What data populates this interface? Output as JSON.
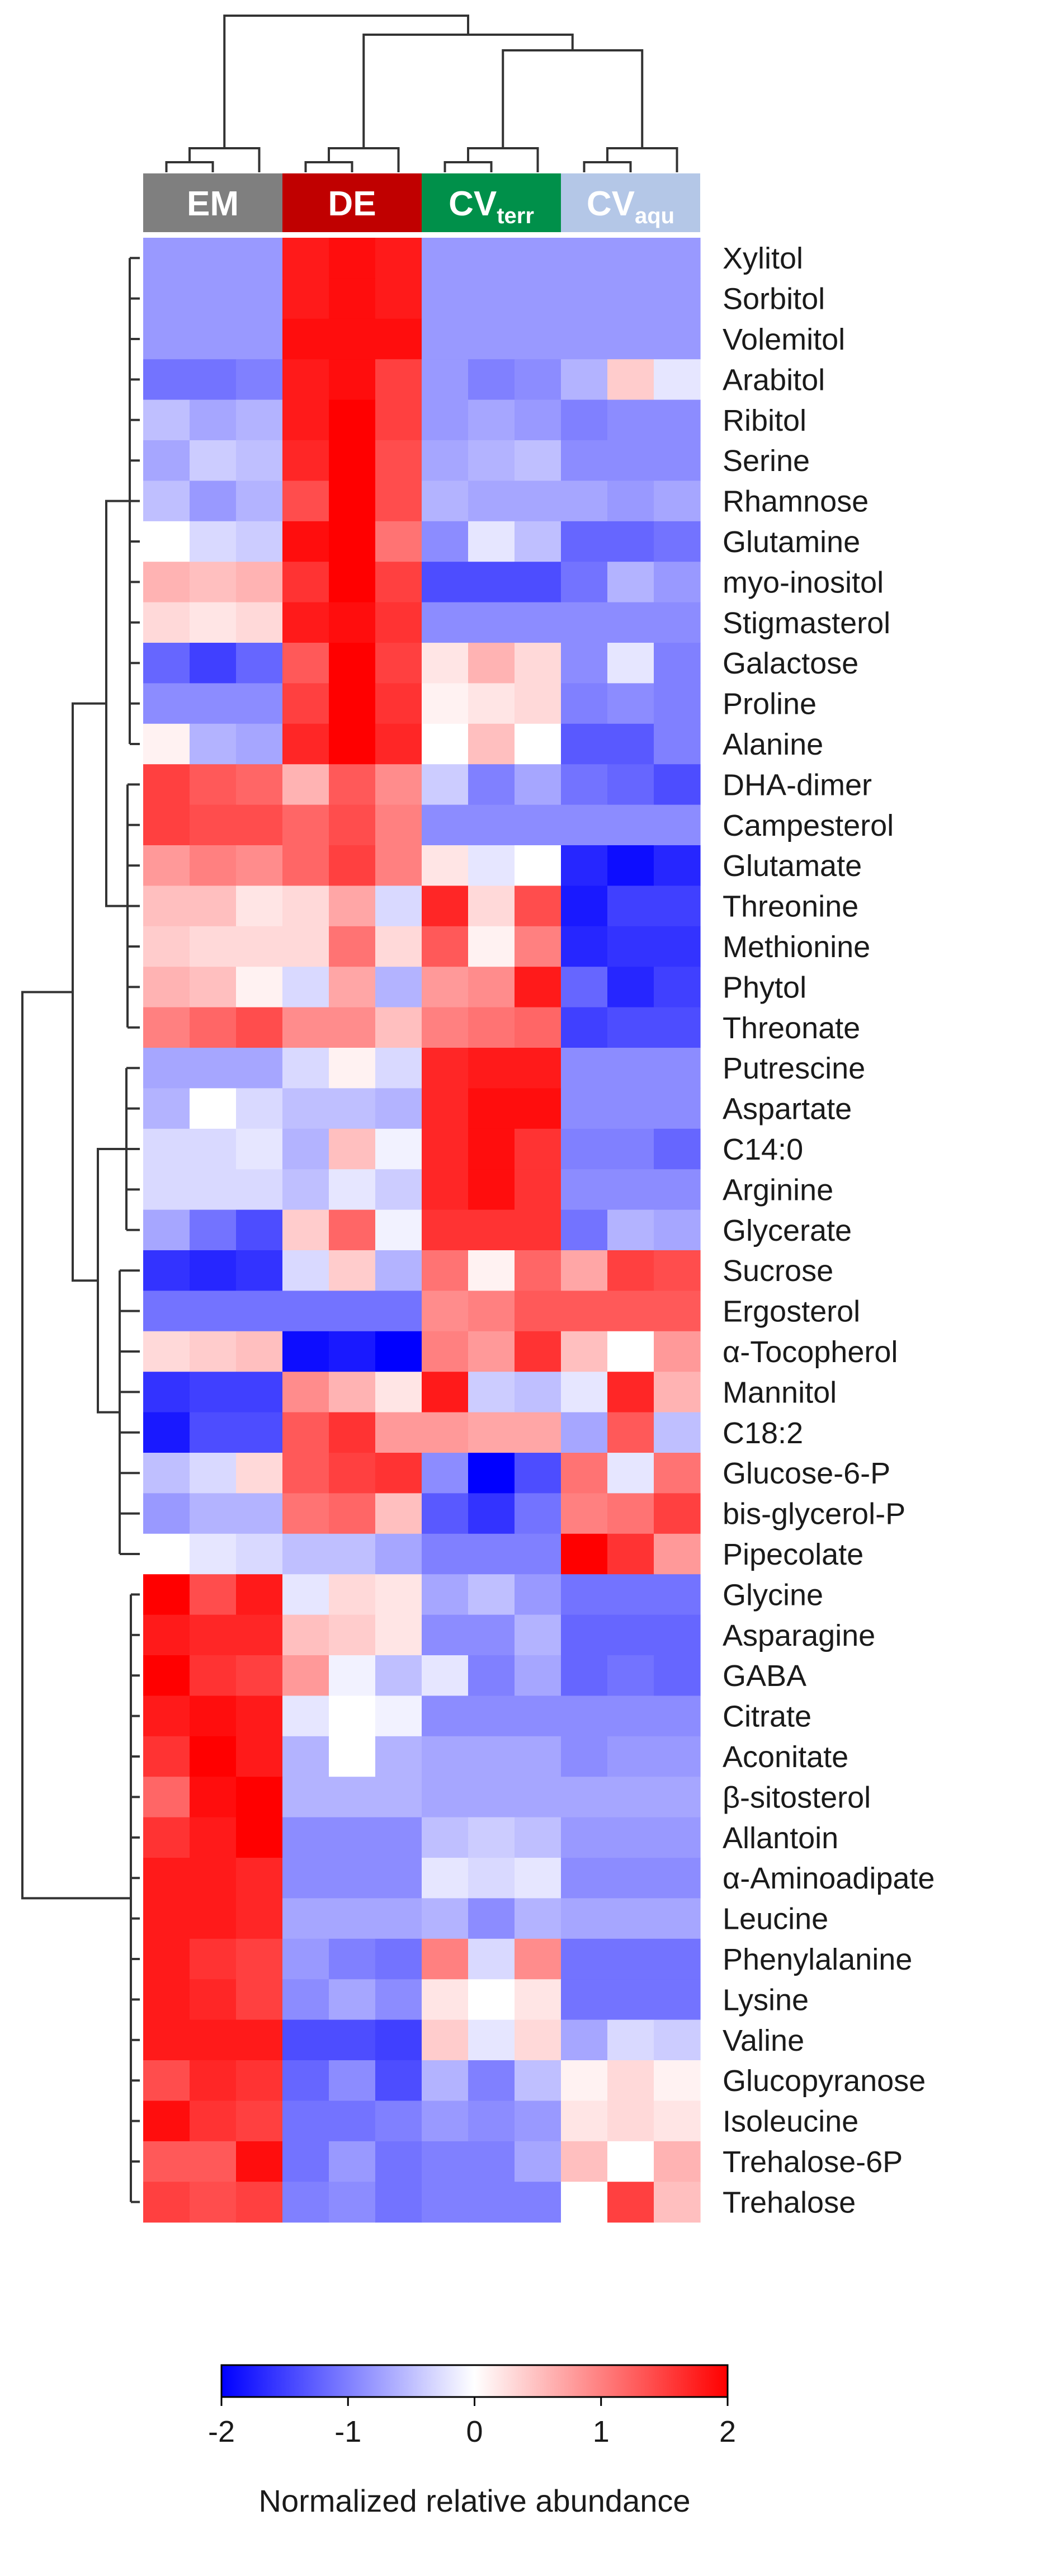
{
  "chart_data": {
    "type": "heatmap",
    "title": "",
    "groups": [
      {
        "label": "EM",
        "sub": "",
        "color": "#7f7f7f",
        "columns": 3
      },
      {
        "label": "DE",
        "sub": "",
        "color": "#c00000",
        "columns": 3
      },
      {
        "label": "CV",
        "sub": "terr",
        "color": "#00904a",
        "columns": 3
      },
      {
        "label": "CV",
        "sub": "aqu",
        "color": "#b4c7e7",
        "columns": 3
      }
    ],
    "rows": [
      "Xylitol",
      "Sorbitol",
      "Volemitol",
      "Arabitol",
      "Ribitol",
      "Serine",
      "Rhamnose",
      "Glutamine",
      "myo-inositol",
      "Stigmasterol",
      "Galactose",
      "Proline",
      "Alanine",
      "DHA-dimer",
      "Campesterol",
      "Glutamate",
      "Threonine",
      "Methionine",
      "Phytol",
      "Threonate",
      "Putrescine",
      "Aspartate",
      "C14:0",
      "Arginine",
      "Glycerate",
      "Sucrose",
      "Ergosterol",
      "α-Tocopherol",
      "Mannitol",
      "C18:2",
      "Glucose-6-P",
      "bis-glycerol-P",
      "Pipecolate",
      "Glycine",
      "Asparagine",
      "GABA",
      "Citrate",
      "Aconitate",
      "β-sitosterol",
      "Allantoin",
      "α-Aminoadipate",
      "Leucine",
      "Phenylalanine",
      "Lysine",
      "Valine",
      "Glucopyranose",
      "Isoleucine",
      "Trehalose-6P",
      "Trehalose"
    ],
    "values": [
      [
        -0.8,
        -0.8,
        -0.8,
        1.8,
        1.9,
        1.8,
        -0.8,
        -0.8,
        -0.8,
        -0.8,
        -0.8,
        -0.8
      ],
      [
        -0.8,
        -0.8,
        -0.8,
        1.8,
        1.9,
        1.8,
        -0.8,
        -0.8,
        -0.8,
        -0.8,
        -0.8,
        -0.8
      ],
      [
        -0.8,
        -0.8,
        -0.8,
        1.9,
        1.9,
        1.9,
        -0.8,
        -0.8,
        -0.8,
        -0.8,
        -0.8,
        -0.8
      ],
      [
        -1.1,
        -1.1,
        -1.0,
        1.8,
        1.9,
        1.5,
        -0.8,
        -1.0,
        -0.9,
        -0.6,
        0.4,
        -0.2
      ],
      [
        -0.5,
        -0.7,
        -0.6,
        1.8,
        2.0,
        1.5,
        -0.8,
        -0.7,
        -0.8,
        -1.0,
        -0.9,
        -0.9
      ],
      [
        -0.7,
        -0.4,
        -0.5,
        1.7,
        2.0,
        1.4,
        -0.7,
        -0.6,
        -0.5,
        -0.9,
        -0.9,
        -0.9
      ],
      [
        -0.5,
        -0.8,
        -0.6,
        1.4,
        2.0,
        1.4,
        -0.6,
        -0.7,
        -0.7,
        -0.7,
        -0.8,
        -0.7
      ],
      [
        0.0,
        -0.3,
        -0.4,
        1.9,
        2.0,
        1.1,
        -0.9,
        -0.2,
        -0.5,
        -1.2,
        -1.2,
        -1.1
      ],
      [
        0.6,
        0.5,
        0.6,
        1.6,
        2.0,
        1.5,
        -1.4,
        -1.4,
        -1.4,
        -1.1,
        -0.6,
        -0.8
      ],
      [
        0.3,
        0.2,
        0.3,
        1.8,
        1.9,
        1.6,
        -0.9,
        -0.9,
        -0.9,
        -0.9,
        -0.9,
        -0.9
      ],
      [
        -1.2,
        -1.5,
        -1.2,
        1.3,
        2.0,
        1.5,
        0.2,
        0.6,
        0.3,
        -0.9,
        -0.2,
        -1.0
      ],
      [
        -0.9,
        -0.9,
        -0.9,
        1.5,
        2.0,
        1.6,
        0.1,
        0.2,
        0.3,
        -1.0,
        -0.9,
        -1.0
      ],
      [
        0.1,
        -0.6,
        -0.7,
        1.7,
        2.0,
        1.7,
        0.0,
        0.5,
        0.0,
        -1.3,
        -1.3,
        -1.0
      ],
      [
        1.5,
        1.3,
        1.2,
        0.6,
        1.3,
        0.9,
        -0.4,
        -1.0,
        -0.7,
        -1.1,
        -1.2,
        -1.4
      ],
      [
        1.5,
        1.4,
        1.4,
        1.2,
        1.4,
        1.0,
        -0.9,
        -0.9,
        -0.9,
        -0.9,
        -0.9,
        -0.9
      ],
      [
        0.8,
        1.0,
        0.9,
        1.2,
        1.5,
        1.0,
        0.2,
        -0.2,
        0.0,
        -1.7,
        -1.9,
        -1.7
      ],
      [
        0.5,
        0.5,
        0.2,
        0.3,
        0.7,
        -0.3,
        1.7,
        0.3,
        1.4,
        -1.8,
        -1.5,
        -1.5
      ],
      [
        0.4,
        0.3,
        0.3,
        0.3,
        1.1,
        0.3,
        1.3,
        0.1,
        1.0,
        -1.7,
        -1.6,
        -1.6
      ],
      [
        0.6,
        0.5,
        0.1,
        -0.3,
        0.7,
        -0.6,
        0.8,
        0.9,
        1.8,
        -1.2,
        -1.7,
        -1.5
      ],
      [
        1.0,
        1.2,
        1.4,
        0.9,
        0.9,
        0.5,
        1.0,
        1.1,
        1.2,
        -1.5,
        -1.4,
        -1.4
      ],
      [
        -0.7,
        -0.7,
        -0.7,
        -0.3,
        0.1,
        -0.3,
        1.7,
        1.8,
        1.8,
        -0.9,
        -0.9,
        -0.9
      ],
      [
        -0.6,
        0.0,
        -0.3,
        -0.5,
        -0.5,
        -0.6,
        1.7,
        1.9,
        1.9,
        -0.9,
        -0.9,
        -0.9
      ],
      [
        -0.3,
        -0.3,
        -0.2,
        -0.6,
        0.5,
        -0.1,
        1.7,
        1.9,
        1.6,
        -1.0,
        -1.0,
        -1.2
      ],
      [
        -0.3,
        -0.3,
        -0.3,
        -0.5,
        -0.2,
        -0.4,
        1.7,
        1.9,
        1.6,
        -0.9,
        -0.9,
        -0.9
      ],
      [
        -0.7,
        -1.1,
        -1.4,
        0.4,
        1.2,
        -0.1,
        1.6,
        1.6,
        1.6,
        -1.1,
        -0.6,
        -0.7
      ],
      [
        -1.6,
        -1.7,
        -1.6,
        -0.3,
        0.4,
        -0.6,
        1.1,
        0.1,
        1.2,
        0.7,
        1.5,
        1.4
      ],
      [
        -1.1,
        -1.1,
        -1.1,
        -1.1,
        -1.1,
        -1.1,
        0.9,
        1.0,
        1.3,
        1.3,
        1.3,
        1.3
      ],
      [
        0.3,
        0.4,
        0.5,
        -1.9,
        -1.8,
        -2.0,
        1.0,
        0.8,
        1.6,
        0.5,
        0.0,
        0.8
      ],
      [
        -1.6,
        -1.5,
        -1.5,
        0.9,
        0.6,
        0.2,
        1.8,
        -0.4,
        -0.5,
        -0.2,
        1.7,
        0.6
      ],
      [
        -1.8,
        -1.4,
        -1.4,
        1.3,
        1.6,
        0.8,
        0.8,
        0.7,
        0.7,
        -0.7,
        1.3,
        -0.5
      ],
      [
        -0.5,
        -0.3,
        0.3,
        1.3,
        1.5,
        1.6,
        -0.9,
        -2.0,
        -1.4,
        1.1,
        -0.2,
        1.1
      ],
      [
        -0.8,
        -0.6,
        -0.6,
        1.1,
        1.2,
        0.5,
        -1.3,
        -1.6,
        -1.1,
        1.0,
        1.1,
        1.5
      ],
      [
        0.0,
        -0.2,
        -0.3,
        -0.5,
        -0.5,
        -0.7,
        -1.0,
        -1.0,
        -1.0,
        2.0,
        1.6,
        0.8
      ],
      [
        2.0,
        1.4,
        1.8,
        -0.2,
        0.3,
        0.2,
        -0.7,
        -0.5,
        -0.8,
        -1.1,
        -1.1,
        -1.1
      ],
      [
        1.8,
        1.7,
        1.7,
        0.5,
        0.4,
        0.2,
        -0.9,
        -0.9,
        -0.6,
        -1.2,
        -1.2,
        -1.2
      ],
      [
        2.0,
        1.6,
        1.5,
        0.8,
        -0.1,
        -0.5,
        -0.2,
        -1.0,
        -0.7,
        -1.2,
        -1.1,
        -1.2
      ],
      [
        1.8,
        1.9,
        1.8,
        -0.2,
        0.0,
        -0.1,
        -0.9,
        -0.9,
        -0.9,
        -0.9,
        -0.9,
        -0.9
      ],
      [
        1.6,
        2.0,
        1.8,
        -0.6,
        0.0,
        -0.6,
        -0.7,
        -0.7,
        -0.7,
        -0.9,
        -0.8,
        -0.8
      ],
      [
        1.2,
        1.9,
        2.0,
        -0.6,
        -0.6,
        -0.6,
        -0.7,
        -0.7,
        -0.7,
        -0.7,
        -0.7,
        -0.7
      ],
      [
        1.6,
        1.8,
        2.0,
        -0.9,
        -0.9,
        -0.9,
        -0.5,
        -0.4,
        -0.5,
        -0.8,
        -0.8,
        -0.8
      ],
      [
        1.8,
        1.8,
        1.7,
        -0.9,
        -0.9,
        -0.9,
        -0.2,
        -0.3,
        -0.2,
        -0.9,
        -0.9,
        -0.9
      ],
      [
        1.8,
        1.8,
        1.7,
        -0.7,
        -0.7,
        -0.7,
        -0.6,
        -0.9,
        -0.6,
        -0.7,
        -0.7,
        -0.7
      ],
      [
        1.8,
        1.6,
        1.5,
        -0.8,
        -1.0,
        -1.1,
        1.0,
        -0.3,
        0.9,
        -1.1,
        -1.1,
        -1.1
      ],
      [
        1.8,
        1.7,
        1.5,
        -0.9,
        -0.7,
        -0.9,
        0.2,
        0.0,
        0.2,
        -1.1,
        -1.1,
        -1.1
      ],
      [
        1.8,
        1.8,
        1.8,
        -1.4,
        -1.4,
        -1.5,
        0.4,
        -0.2,
        0.3,
        -0.7,
        -0.3,
        -0.4
      ],
      [
        1.4,
        1.7,
        1.6,
        -1.2,
        -0.9,
        -1.4,
        -0.6,
        -1.0,
        -0.5,
        0.1,
        0.3,
        0.1
      ],
      [
        1.9,
        1.6,
        1.5,
        -1.1,
        -1.1,
        -1.0,
        -0.8,
        -0.9,
        -0.8,
        0.2,
        0.3,
        0.2
      ],
      [
        1.3,
        1.3,
        1.9,
        -1.1,
        -0.8,
        -1.1,
        -1.0,
        -1.0,
        -0.7,
        0.5,
        0.0,
        0.6
      ],
      [
        1.5,
        1.4,
        1.5,
        -1.0,
        -0.9,
        -1.1,
        -1.0,
        -1.0,
        -1.0,
        0.0,
        1.5,
        0.5
      ]
    ],
    "colorbar": {
      "min": -2,
      "max": 2,
      "ticks": [
        "-2",
        "-1",
        "0",
        "1",
        "2"
      ],
      "title": "Normalized relative abundance",
      "colors": {
        "low": "#0000ff",
        "mid": "#ffffff",
        "high": "#ff0000"
      }
    }
  }
}
